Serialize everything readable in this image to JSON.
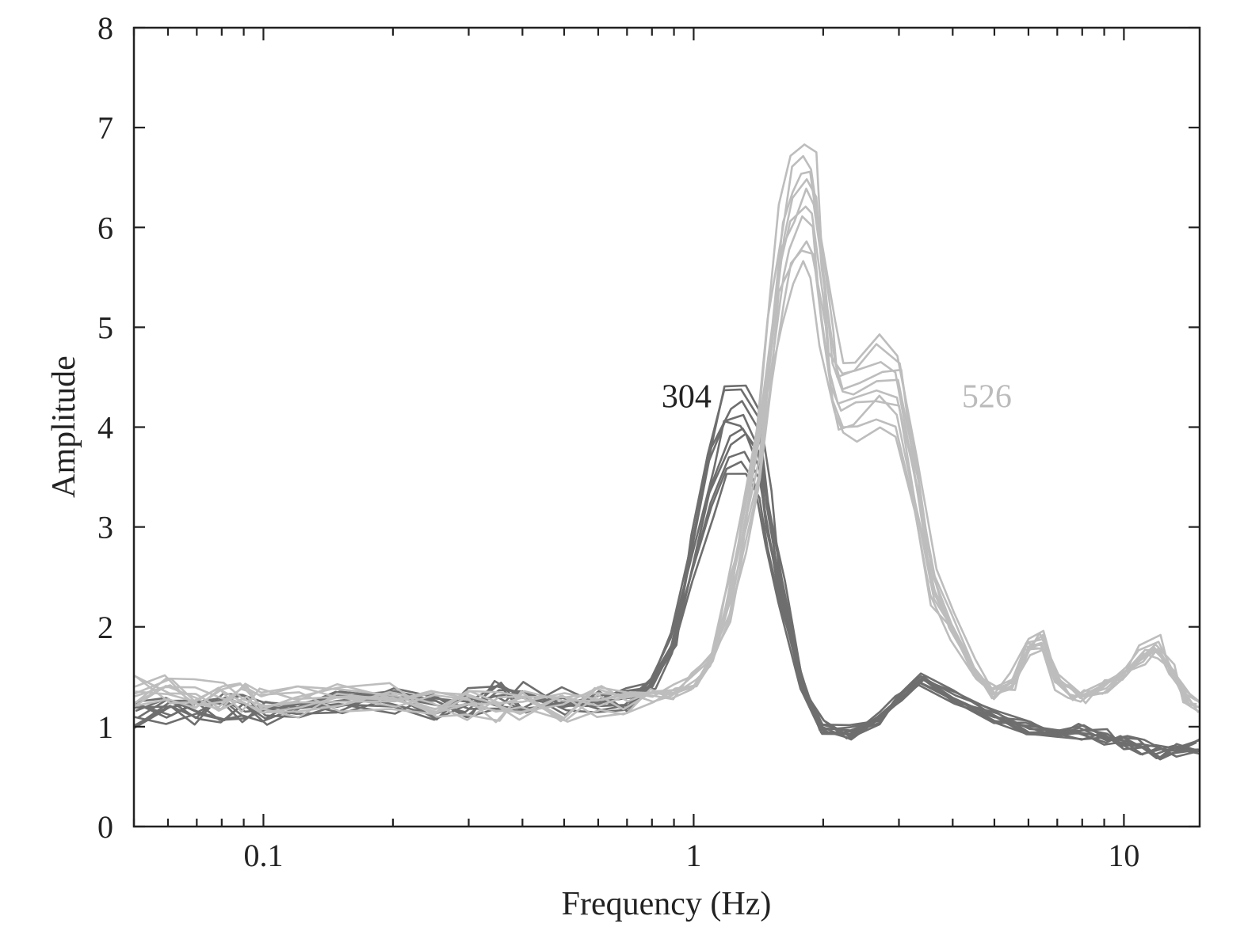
{
  "chart_data": {
    "type": "line",
    "xlabel": "Frequency (Hz)",
    "ylabel": "Amplitude",
    "x_scale": "log",
    "xlim": [
      0.05,
      15
    ],
    "ylim": [
      0,
      8
    ],
    "x_ticks": [
      {
        "value": 0.1,
        "label": "0.1"
      },
      {
        "value": 1,
        "label": "1"
      },
      {
        "value": 10,
        "label": "10"
      }
    ],
    "y_ticks": [
      {
        "value": 0,
        "label": "0"
      },
      {
        "value": 1,
        "label": "1"
      },
      {
        "value": 2,
        "label": "2"
      },
      {
        "value": 3,
        "label": "3"
      },
      {
        "value": 4,
        "label": "4"
      },
      {
        "value": 5,
        "label": "5"
      },
      {
        "value": 6,
        "label": "6"
      },
      {
        "value": 7,
        "label": "7"
      },
      {
        "value": 8,
        "label": "8"
      }
    ],
    "grid": false,
    "ticks_mirrored": true,
    "annotations": [
      {
        "text": "304",
        "x": 1.1,
        "y": 4.2,
        "color": "#222222"
      },
      {
        "text": "526",
        "x": 4.2,
        "y": 4.2,
        "color": "#bbbbbb"
      }
    ],
    "series_groups": [
      {
        "name": "304",
        "color": "#6e6e6e",
        "curve_count": 10,
        "representative": {
          "x": [
            0.05,
            0.06,
            0.07,
            0.08,
            0.09,
            0.1,
            0.12,
            0.15,
            0.2,
            0.25,
            0.3,
            0.35,
            0.4,
            0.5,
            0.6,
            0.7,
            0.8,
            0.9,
            1.0,
            1.1,
            1.2,
            1.3,
            1.4,
            1.5,
            1.6,
            1.8,
            2.0,
            2.3,
            2.7,
            3.0,
            3.4,
            4.0,
            5.0,
            6.0,
            7.0,
            8.0,
            9.0,
            10.0,
            11.0,
            12.0,
            13.0,
            15.0
          ],
          "y": [
            1.1,
            1.15,
            1.15,
            1.2,
            1.2,
            1.15,
            1.2,
            1.2,
            1.25,
            1.2,
            1.25,
            1.3,
            1.3,
            1.25,
            1.25,
            1.3,
            1.45,
            1.8,
            2.6,
            3.4,
            3.85,
            3.9,
            3.6,
            3.0,
            2.3,
            1.4,
            1.0,
            0.95,
            1.1,
            1.3,
            1.45,
            1.3,
            1.1,
            1.0,
            0.95,
            0.95,
            0.9,
            0.85,
            0.8,
            0.75,
            0.75,
            0.8
          ]
        },
        "peak": {
          "x": 1.32,
          "y_min": 3.6,
          "y_max": 4.48
        }
      },
      {
        "name": "526",
        "color": "#bdbdbd",
        "curve_count": 10,
        "representative": {
          "x": [
            0.05,
            0.06,
            0.07,
            0.08,
            0.09,
            0.1,
            0.12,
            0.15,
            0.2,
            0.25,
            0.3,
            0.35,
            0.4,
            0.5,
            0.6,
            0.7,
            0.8,
            0.9,
            1.0,
            1.1,
            1.2,
            1.3,
            1.4,
            1.5,
            1.6,
            1.7,
            1.8,
            1.9,
            2.0,
            2.1,
            2.2,
            2.4,
            2.7,
            3.0,
            3.3,
            3.6,
            4.0,
            4.5,
            5.0,
            5.5,
            6.0,
            6.5,
            7.0,
            7.5,
            8.0,
            9.0,
            10.0,
            11.0,
            12.0,
            13.0,
            14.0,
            15.0
          ],
          "y": [
            1.35,
            1.4,
            1.35,
            1.3,
            1.3,
            1.25,
            1.25,
            1.3,
            1.3,
            1.25,
            1.2,
            1.2,
            1.2,
            1.2,
            1.25,
            1.25,
            1.3,
            1.35,
            1.45,
            1.7,
            2.2,
            2.9,
            3.8,
            4.8,
            5.7,
            6.1,
            6.3,
            6.2,
            5.4,
            4.6,
            4.3,
            4.35,
            4.5,
            4.4,
            3.4,
            2.4,
            2.0,
            1.6,
            1.35,
            1.45,
            1.8,
            1.85,
            1.45,
            1.35,
            1.3,
            1.4,
            1.5,
            1.7,
            1.8,
            1.55,
            1.3,
            1.2
          ]
        },
        "peak": {
          "x": 1.88,
          "y_min": 5.6,
          "y_max": 6.9
        }
      }
    ]
  }
}
